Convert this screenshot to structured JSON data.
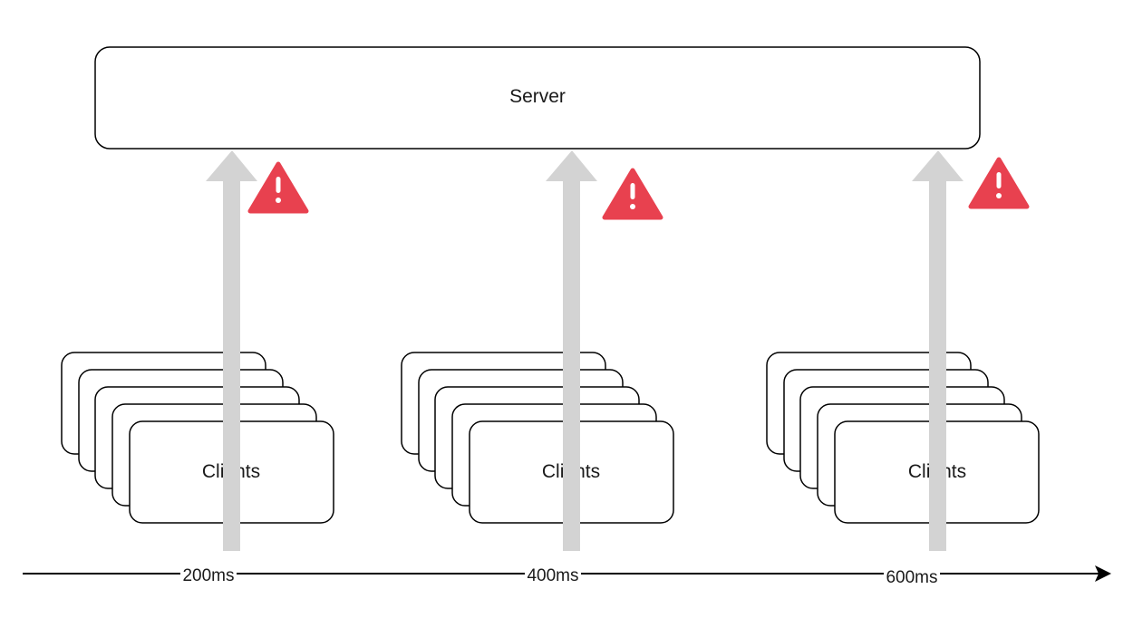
{
  "server": {
    "label": "Server"
  },
  "client_groups": [
    {
      "label": "Clients",
      "time_label": "200ms"
    },
    {
      "label": "Clients",
      "time_label": "400ms"
    },
    {
      "label": "Clients",
      "time_label": "600ms"
    }
  ],
  "icons": {
    "warning": "warning-triangle-icon",
    "request_arrow": "up-arrow-icon",
    "timeline_arrow": "right-arrow-icon"
  },
  "colors": {
    "stroke": "#000000",
    "request_arrow": "#d3d3d3",
    "warning": "#e8414f",
    "warning_mark": "#ffffff"
  }
}
